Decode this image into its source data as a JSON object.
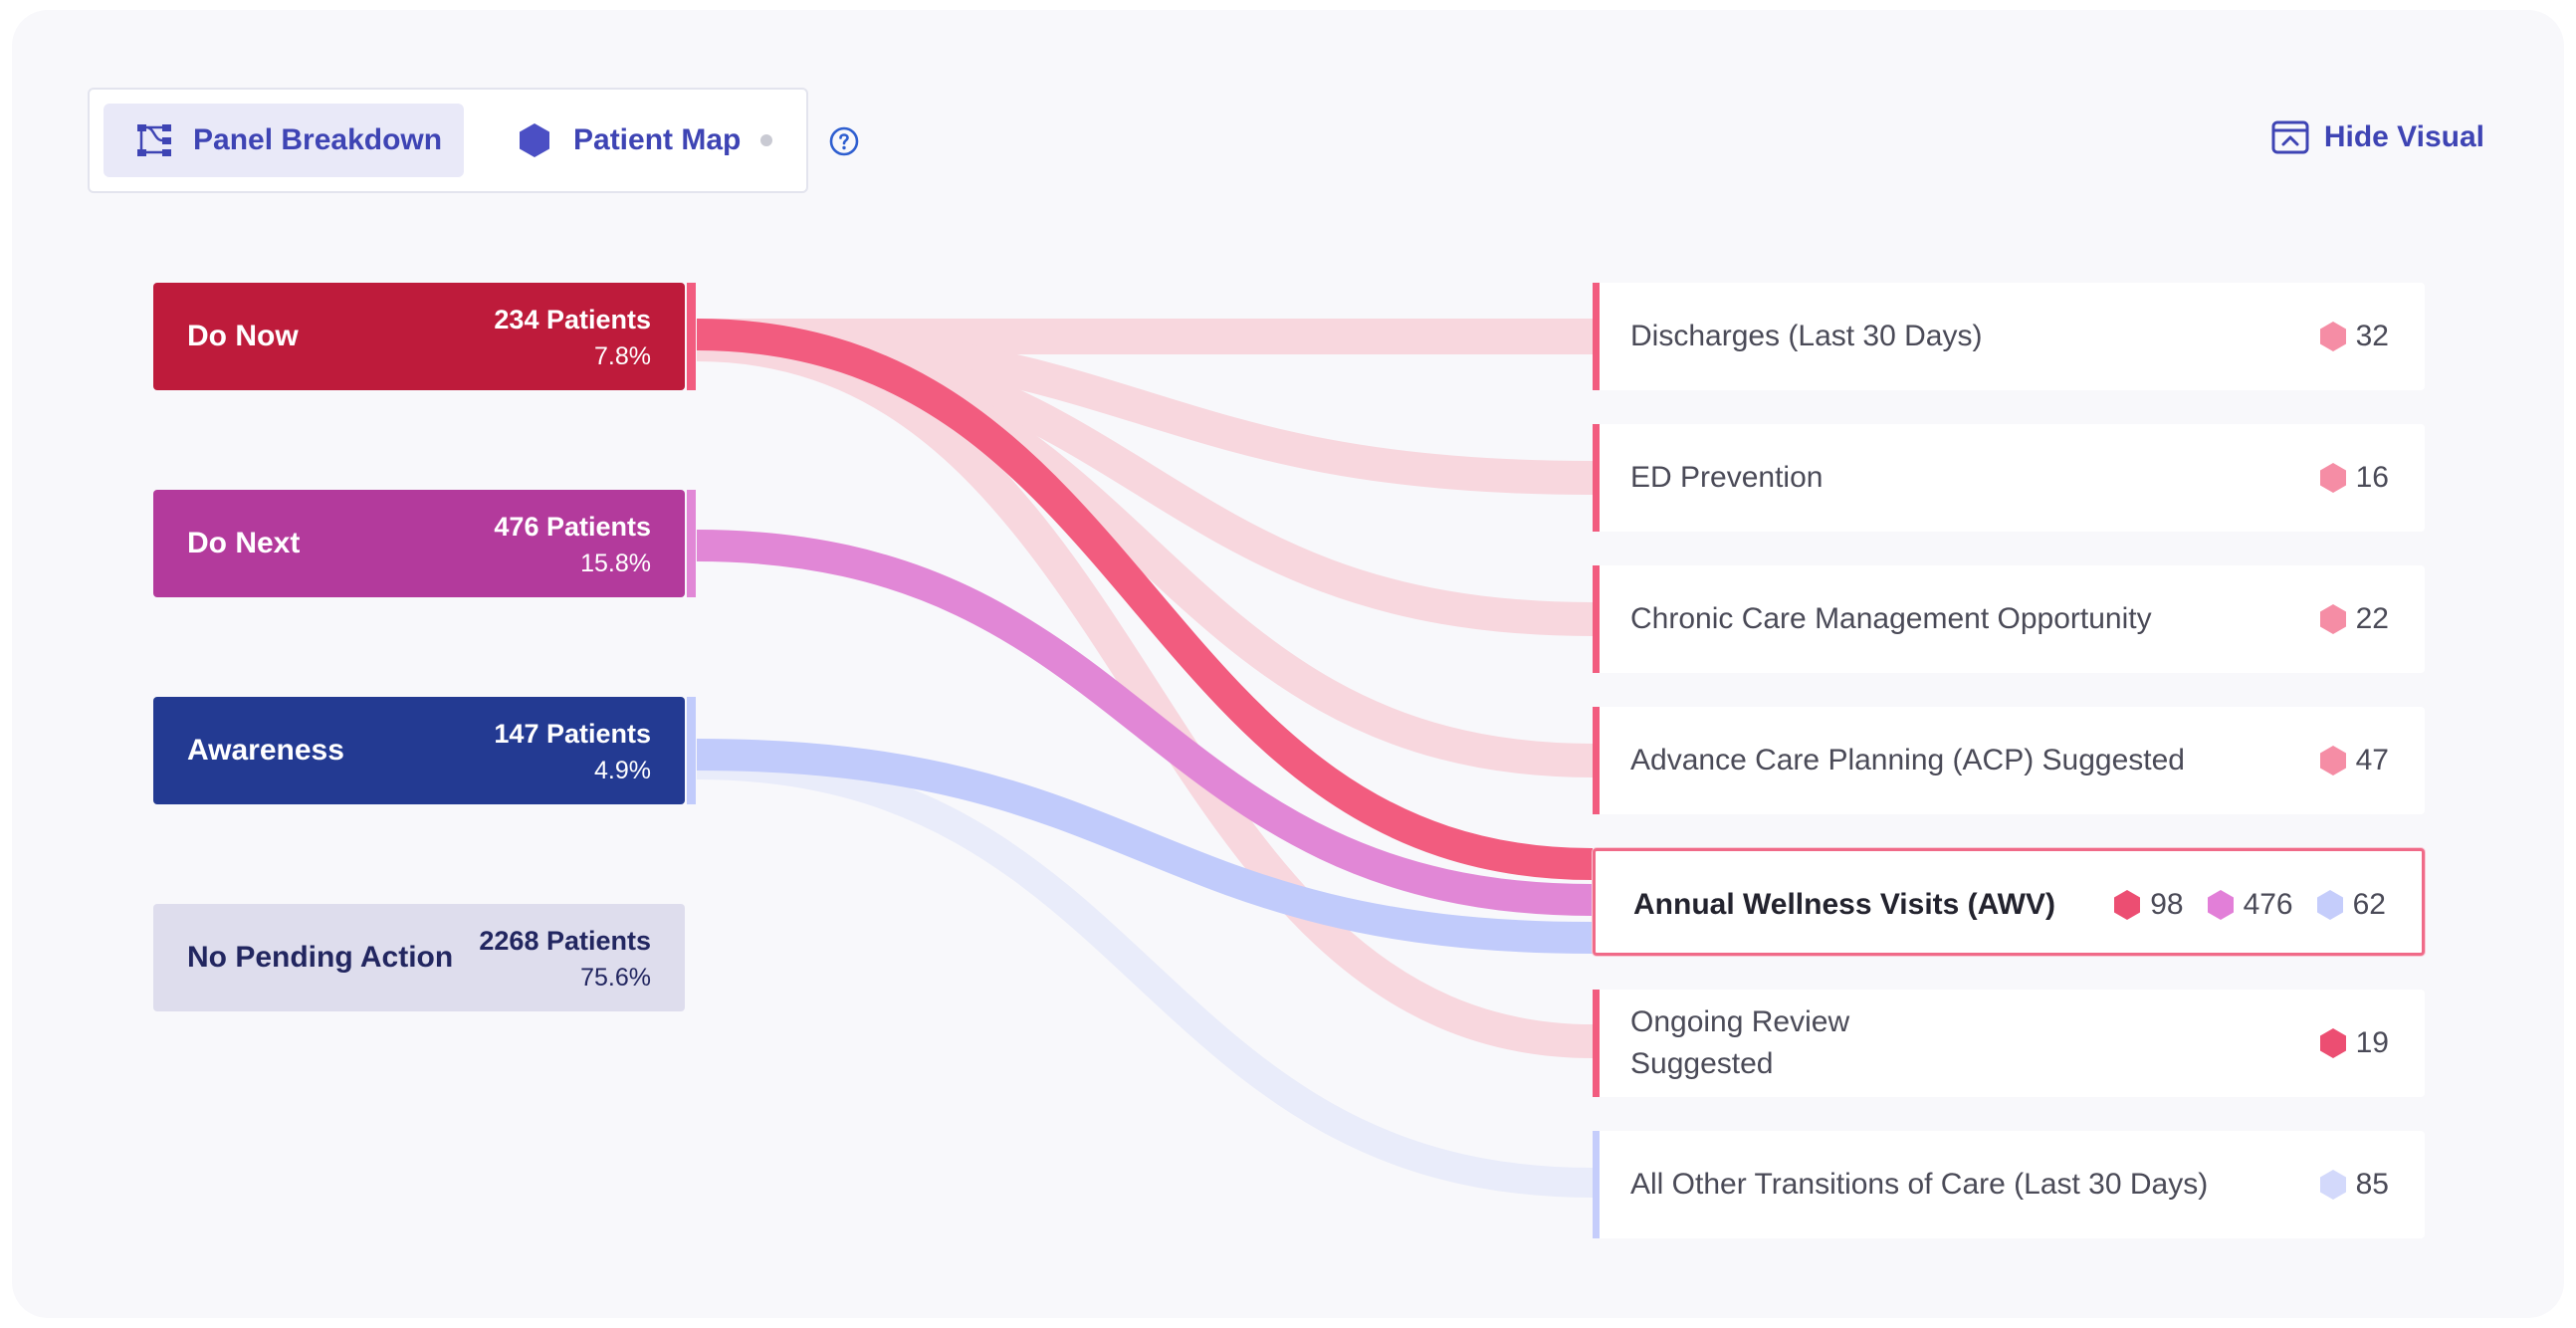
{
  "toolbar": {
    "tab_panel": "Panel Breakdown",
    "tab_map": "Patient Map",
    "hide_label": "Hide Visual"
  },
  "colors": {
    "do_now": "#be1b3b",
    "do_next": "#b33a9c",
    "awareness": "#233a92",
    "no_pending": "#dedded",
    "flow_do_now": "#f25c7f",
    "flow_do_now_faint": "#f8d7de",
    "flow_do_next": "#e187d6",
    "flow_awareness": "#c1cbfb",
    "flow_awareness_faint": "#e9ecfa"
  },
  "sources": [
    {
      "id": "do-now",
      "name": "Do Now",
      "count": "234 Patients",
      "pct": "7.8%"
    },
    {
      "id": "do-next",
      "name": "Do Next",
      "count": "476 Patients",
      "pct": "15.8%"
    },
    {
      "id": "awareness",
      "name": "Awareness",
      "count": "147 Patients",
      "pct": "4.9%"
    },
    {
      "id": "no-pending",
      "name": "No Pending Action",
      "count": "2268 Patients",
      "pct": "75.6%"
    }
  ],
  "destinations": [
    {
      "id": "discharges",
      "label": "Discharges (Last 30 Days)",
      "badges": [
        {
          "value": "32"
        }
      ]
    },
    {
      "id": "ed-prevention",
      "label": "ED Prevention",
      "badges": [
        {
          "value": "16"
        }
      ]
    },
    {
      "id": "ccm",
      "label": "Chronic Care Management Opportunity",
      "badges": [
        {
          "value": "22"
        }
      ]
    },
    {
      "id": "acp",
      "label": "Advance Care Planning (ACP) Suggested",
      "badges": [
        {
          "value": "47"
        }
      ]
    },
    {
      "id": "awv",
      "label": "Annual Wellness Visits (AWV)",
      "badges": [
        {
          "value": "98"
        },
        {
          "value": "476"
        },
        {
          "value": "62"
        }
      ]
    },
    {
      "id": "ongoing",
      "label_line1": "Ongoing Review",
      "label_line2": "Suggested",
      "badges": [
        {
          "value": "19"
        }
      ]
    },
    {
      "id": "other-toc",
      "label": "All Other Transitions of Care (Last 30 Days)",
      "badges": [
        {
          "value": "85"
        }
      ]
    }
  ]
}
